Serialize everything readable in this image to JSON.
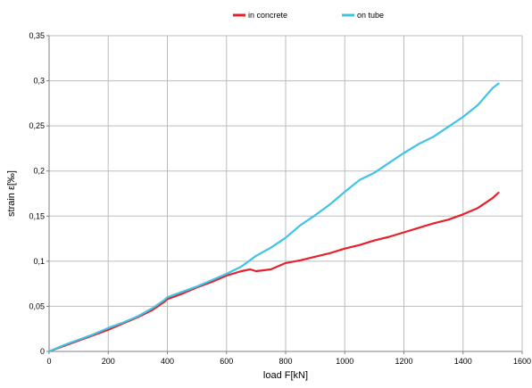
{
  "chart_data": {
    "type": "line",
    "title": "",
    "xlabel": "load F[kN]",
    "ylabel": "strain ε[‰]",
    "xlim": [
      0,
      1600
    ],
    "ylim": [
      0,
      0.35
    ],
    "xticks": [
      0,
      200,
      400,
      600,
      800,
      1000,
      1200,
      1400,
      1600
    ],
    "yticks": [
      0,
      0.05,
      0.1,
      0.15,
      0.2,
      0.25,
      0.3,
      0.35
    ],
    "xtick_labels": [
      "0",
      "200",
      "400",
      "600",
      "800",
      "1000",
      "1200",
      "1400",
      "1600"
    ],
    "ytick_labels": [
      "0",
      "0,05",
      "0,1",
      "0,15",
      "0,2",
      "0,25",
      "0,3",
      "0,35"
    ],
    "grid": true,
    "legend_position": "top-center",
    "series": [
      {
        "name": "in concrete",
        "color": "#e8202a",
        "points": [
          [
            0,
            0
          ],
          [
            50,
            0.006
          ],
          [
            100,
            0.012
          ],
          [
            150,
            0.018
          ],
          [
            200,
            0.024
          ],
          [
            250,
            0.031
          ],
          [
            300,
            0.038
          ],
          [
            350,
            0.046
          ],
          [
            390,
            0.055
          ],
          [
            400,
            0.058
          ],
          [
            450,
            0.064
          ],
          [
            500,
            0.071
          ],
          [
            550,
            0.077
          ],
          [
            600,
            0.084
          ],
          [
            650,
            0.089
          ],
          [
            680,
            0.091
          ],
          [
            700,
            0.089
          ],
          [
            750,
            0.091
          ],
          [
            800,
            0.098
          ],
          [
            850,
            0.101
          ],
          [
            900,
            0.105
          ],
          [
            950,
            0.109
          ],
          [
            1000,
            0.114
          ],
          [
            1050,
            0.118
          ],
          [
            1100,
            0.123
          ],
          [
            1150,
            0.127
          ],
          [
            1200,
            0.132
          ],
          [
            1250,
            0.137
          ],
          [
            1300,
            0.142
          ],
          [
            1350,
            0.146
          ],
          [
            1400,
            0.152
          ],
          [
            1450,
            0.159
          ],
          [
            1500,
            0.17
          ],
          [
            1520,
            0.176
          ]
        ]
      },
      {
        "name": "on tube",
        "color": "#3fc4e6",
        "points": [
          [
            0,
            0
          ],
          [
            50,
            0.007
          ],
          [
            100,
            0.013
          ],
          [
            150,
            0.019
          ],
          [
            200,
            0.026
          ],
          [
            250,
            0.032
          ],
          [
            300,
            0.039
          ],
          [
            350,
            0.048
          ],
          [
            390,
            0.057
          ],
          [
            400,
            0.06
          ],
          [
            450,
            0.066
          ],
          [
            500,
            0.072
          ],
          [
            550,
            0.079
          ],
          [
            600,
            0.086
          ],
          [
            650,
            0.094
          ],
          [
            700,
            0.106
          ],
          [
            750,
            0.115
          ],
          [
            800,
            0.126
          ],
          [
            850,
            0.14
          ],
          [
            900,
            0.151
          ],
          [
            950,
            0.163
          ],
          [
            1000,
            0.177
          ],
          [
            1050,
            0.19
          ],
          [
            1100,
            0.198
          ],
          [
            1150,
            0.209
          ],
          [
            1200,
            0.22
          ],
          [
            1250,
            0.23
          ],
          [
            1300,
            0.238
          ],
          [
            1350,
            0.249
          ],
          [
            1400,
            0.26
          ],
          [
            1450,
            0.273
          ],
          [
            1500,
            0.292
          ],
          [
            1520,
            0.297
          ]
        ]
      }
    ]
  }
}
